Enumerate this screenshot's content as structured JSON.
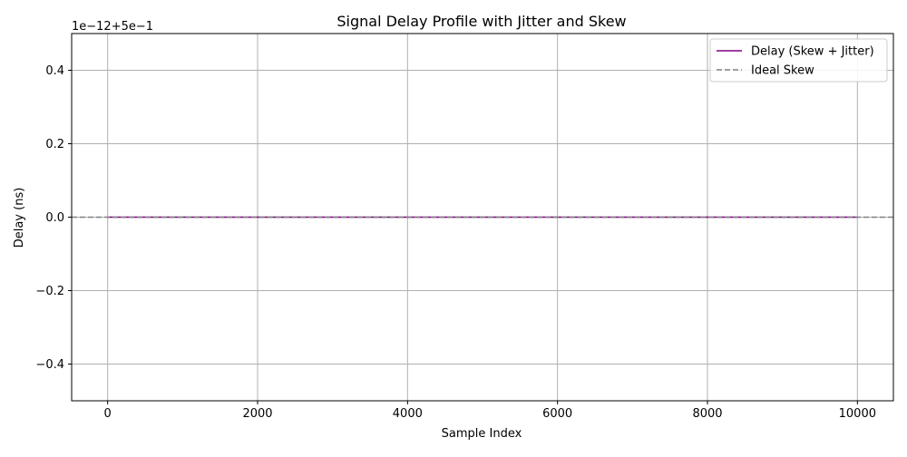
{
  "chart_data": {
    "type": "line",
    "title": "Signal Delay Profile with Jitter and Skew",
    "xlabel": "Sample Index",
    "ylabel": "Delay (ns)",
    "y_offset_label": "1e−12+5e−1",
    "xlim": [
      -480,
      10480
    ],
    "ylim": [
      -0.5,
      0.5
    ],
    "x_ticks": [
      0,
      2000,
      4000,
      6000,
      8000,
      10000
    ],
    "x_tick_labels": [
      "0",
      "2000",
      "4000",
      "6000",
      "8000",
      "10000"
    ],
    "y_ticks": [
      -0.4,
      -0.2,
      0.0,
      0.2,
      0.4
    ],
    "y_tick_labels": [
      "−0.4",
      "−0.2",
      "0.0",
      "0.2",
      "0.4"
    ],
    "grid": true,
    "legend_position": "top-right",
    "series": [
      {
        "name": "Delay (Skew + Jitter)",
        "color": "#800080",
        "style": "solid",
        "x": [
          0,
          10000
        ],
        "y": [
          0.0,
          0.0
        ]
      },
      {
        "name": "Ideal Skew",
        "color": "#808080",
        "style": "dashed",
        "x": [
          -480,
          10480
        ],
        "y": [
          0.0,
          0.0
        ]
      }
    ]
  }
}
